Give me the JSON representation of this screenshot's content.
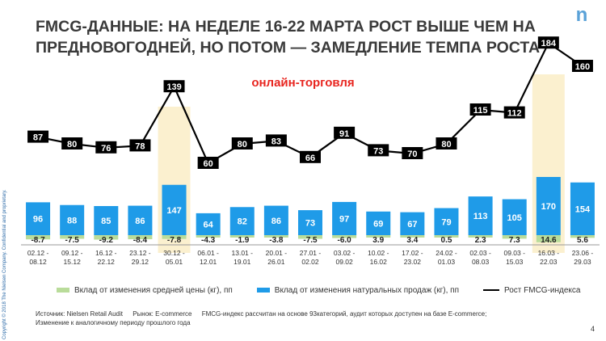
{
  "slide": {
    "title": "FMCG-ДАННЫЕ: НА НЕДЕЛЕ 16-22 МАРТА РОСТ ВЫШЕ ЧЕМ НА ПРЕДНОВОГОДНЕЙ, НО ПОТОМ — ЗАМЕДЛЕНИЕ ТЕМПА РОСТА",
    "subtitle": "онлайн-торговля",
    "logo": "n",
    "sidebar_text": "Copyright © 2018 The Nielsen Company. Confidential and proprietary.",
    "source_label": "Источник: Nielsen Retail Audit",
    "market_label": "Рынок: E-commerce",
    "index_note": "FMCG-индекс рассчитан на основе 93категорий,  аудит которых доступен на базе E-commerce;",
    "comparison_note": "Изменение к аналогичному периоду прошлого года",
    "page_number": "4"
  },
  "colors": {
    "natural": "#1f9be8",
    "price": "#b9dc9a",
    "line": "#000000",
    "label_box": "#000000",
    "highlight": "#fbf0cf",
    "axis": "#999999",
    "title": "#3a3a3a",
    "subtitle": "#e8251f"
  },
  "chart_data": {
    "type": "bar",
    "stacked": true,
    "categories": [
      "02.12 - 08.12",
      "09.12 - 15.12",
      "16.12 - 22.12",
      "23.12 - 29.12",
      "30.12 - 05.01",
      "06.01 - 12.01",
      "13.01 - 19.01",
      "20.01 - 26.01",
      "27.01 - 02.02",
      "03.02 - 09.02",
      "10.02 - 16.02",
      "17.02 - 23.02",
      "24.02 - 01.03",
      "02.03 - 08.03",
      "09.03 - 15.03",
      "16.03 - 22.03",
      "23.06 - 29.03"
    ],
    "series": [
      {
        "name": "Вклад от изменения средней цены (кг), пп",
        "values": [
          -8.7,
          -7.5,
          -9.2,
          -8.4,
          -7.8,
          -4.3,
          -1.9,
          -3.8,
          -7.5,
          -6.0,
          3.9,
          3.4,
          0.5,
          2.3,
          7.3,
          14.6,
          5.6
        ]
      },
      {
        "name": "Вклад от изменения натуральных продаж (кг), пп",
        "values": [
          96,
          88,
          85,
          86,
          147,
          64,
          82,
          86,
          73,
          97,
          69,
          67,
          79,
          113,
          105,
          170,
          154
        ]
      },
      {
        "name": "Рост FMCG-индекса",
        "type": "line",
        "values": [
          87,
          80,
          76,
          78,
          139,
          60,
          80,
          83,
          66,
          91,
          73,
          70,
          80,
          115,
          112,
          184,
          160
        ]
      }
    ],
    "highlighted_categories": [
      "30.12 - 05.01",
      "16.03 - 22.03"
    ],
    "legend_position": "bottom",
    "grid": false
  }
}
